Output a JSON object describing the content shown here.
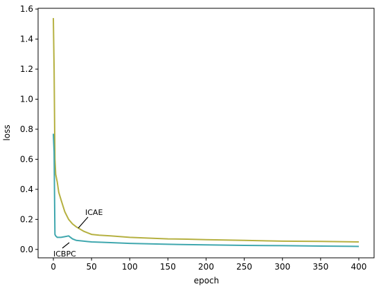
{
  "chart_data": {
    "type": "line",
    "x_label": "epoch",
    "y_label": "loss",
    "x": [
      0,
      1,
      2,
      3,
      5,
      7,
      10,
      15,
      20,
      25,
      30,
      40,
      50,
      60,
      75,
      100,
      125,
      150,
      175,
      200,
      250,
      300,
      350,
      400
    ],
    "series": [
      {
        "name": "ICAE",
        "color": "#b5b040",
        "values": [
          1.54,
          1.2,
          0.6,
          0.5,
          0.45,
          0.38,
          0.33,
          0.25,
          0.2,
          0.17,
          0.15,
          0.12,
          0.1,
          0.095,
          0.09,
          0.08,
          0.075,
          0.07,
          0.068,
          0.065,
          0.06,
          0.055,
          0.053,
          0.05
        ]
      },
      {
        "name": "ICBPC",
        "color": "#3fa7ae",
        "values": [
          0.77,
          0.65,
          0.1,
          0.09,
          0.08,
          0.08,
          0.08,
          0.085,
          0.09,
          0.07,
          0.06,
          0.055,
          0.05,
          0.048,
          0.045,
          0.04,
          0.037,
          0.034,
          0.032,
          0.03,
          0.027,
          0.025,
          0.022,
          0.02
        ]
      }
    ],
    "annotations": [
      "ICAE",
      "ICBPC"
    ],
    "xlim": [
      -20,
      420
    ],
    "ylim": [
      -0.056,
      1.605
    ],
    "xticks": [
      0,
      50,
      100,
      150,
      200,
      250,
      300,
      350,
      400
    ],
    "yticks": [
      {
        "value": 0,
        "label": "0.0"
      },
      0.2,
      0.4,
      0.6,
      0.8,
      {
        "value": 1,
        "label": "1.0"
      },
      1.2,
      1.4,
      1.6
    ],
    "grid": false
  }
}
